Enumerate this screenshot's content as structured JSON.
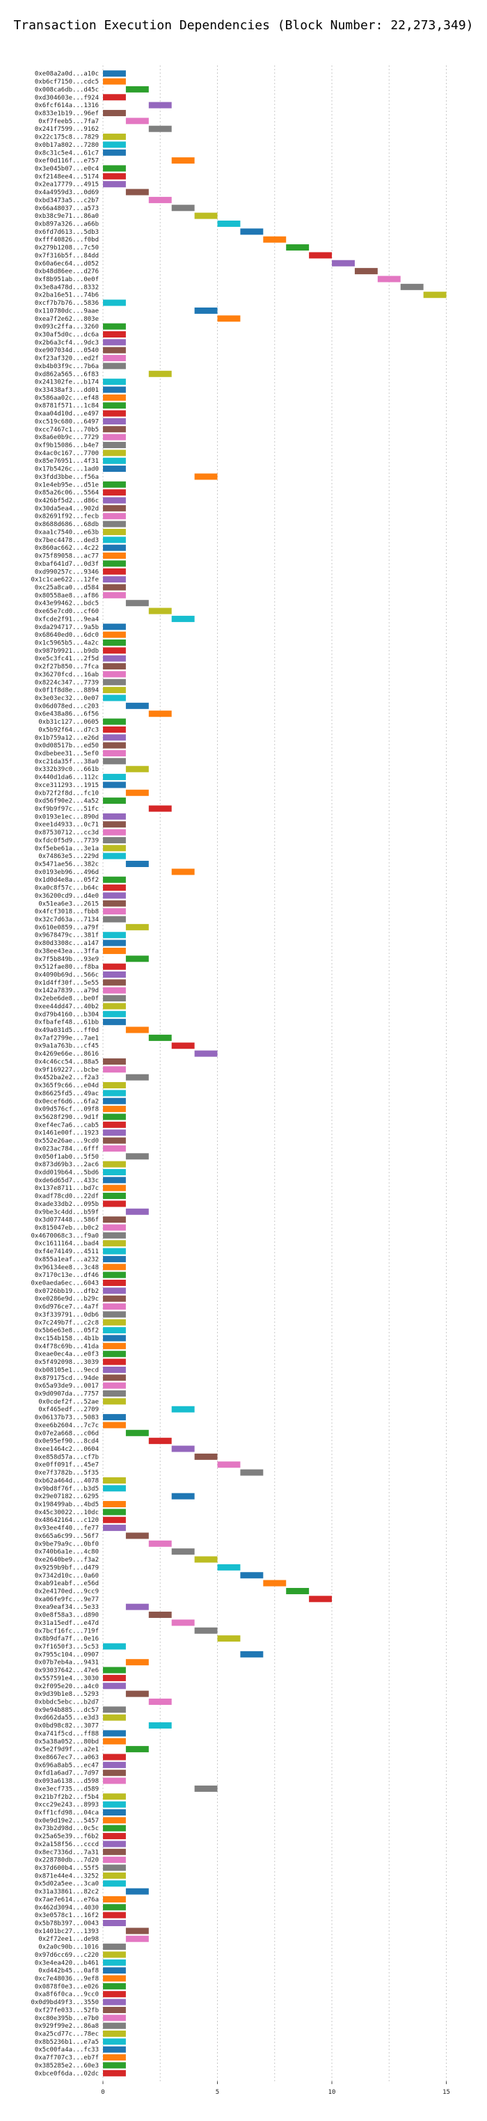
{
  "chart_data": {
    "type": "gantt",
    "title": "Transaction Execution Dependencies (Block Number: 22,273,349)",
    "xlabel": "",
    "ylabel": "",
    "xlim": [
      0,
      15.5
    ],
    "x_ticks": [
      0,
      5,
      10,
      15
    ],
    "grid": "vertical dotted",
    "palette": [
      "#1f77b4",
      "#ff7f0e",
      "#2ca02c",
      "#d62728",
      "#9467bd",
      "#8c564b",
      "#e377c2",
      "#7f7f7f",
      "#bcbd22",
      "#17becf"
    ],
    "transactions": [
      {
        "label": "0xe08a2a0d...a10c",
        "start": 0
      },
      {
        "label": "0xb6cf7150...cdc5",
        "start": 0
      },
      {
        "label": "0x008ca6db...d45c",
        "start": 1
      },
      {
        "label": "0xd304603e...f924",
        "start": 0
      },
      {
        "label": "0x6fcf614a...1316",
        "start": 2
      },
      {
        "label": "0x833e1b19...96ef",
        "start": 0
      },
      {
        "label": "0xf7feeb5...7fa7",
        "start": 1
      },
      {
        "label": "0x241f7599...9162",
        "start": 2
      },
      {
        "label": "0x22c175c8...7829",
        "start": 0
      },
      {
        "label": "0x0b17a802...7280",
        "start": 0
      },
      {
        "label": "0x8c31c5e4...61c7",
        "start": 0
      },
      {
        "label": "0xef0d116f...e757",
        "start": 3
      },
      {
        "label": "0x3e045b07...e0c4",
        "start": 0
      },
      {
        "label": "0xf2148ee4...5174",
        "start": 0
      },
      {
        "label": "0x2ea17779...4915",
        "start": 0
      },
      {
        "label": "0x4a4959d3...0d69",
        "start": 1
      },
      {
        "label": "0xbd3473a5...c2b7",
        "start": 2
      },
      {
        "label": "0x66a48037...a573",
        "start": 3
      },
      {
        "label": "0xb38c9e71...86a0",
        "start": 4
      },
      {
        "label": "0xb897a326...a66b",
        "start": 5
      },
      {
        "label": "0x6fd7d613...5db3",
        "start": 6
      },
      {
        "label": "0xfff40826...f0bd",
        "start": 7
      },
      {
        "label": "0x279b1208...7c50",
        "start": 8
      },
      {
        "label": "0x7f316b5f...84dd",
        "start": 9
      },
      {
        "label": "0x60a6ec64...d052",
        "start": 10
      },
      {
        "label": "0xb48d86ee...d276",
        "start": 11
      },
      {
        "label": "0xf8b951ab...0e0f",
        "start": 12
      },
      {
        "label": "0x3e8a478d...8332",
        "start": 13
      },
      {
        "label": "0x2ba16e51...74b6",
        "start": 14
      },
      {
        "label": "0xcf7b7b76...5836",
        "start": 0
      },
      {
        "label": "0x110780dc...9aae",
        "start": 4
      },
      {
        "label": "0xea7f2e62...803e",
        "start": 5
      },
      {
        "label": "0x093c2ffa...3260",
        "start": 0
      },
      {
        "label": "0x30af5d0c...dc6a",
        "start": 0
      },
      {
        "label": "0x2b6a3cf4...9dc3",
        "start": 0
      },
      {
        "label": "0xe907034d...0540",
        "start": 0
      },
      {
        "label": "0xf23af320...ed2f",
        "start": 0
      },
      {
        "label": "0xb4b03f9c...7b6a",
        "start": 0
      },
      {
        "label": "0xd862a565...6f83",
        "start": 2
      },
      {
        "label": "0x241302fe...b174",
        "start": 0
      },
      {
        "label": "0x33438af3...dd01",
        "start": 0
      },
      {
        "label": "0x586aa02c...ef48",
        "start": 0
      },
      {
        "label": "0x8781f571...1c84",
        "start": 0
      },
      {
        "label": "0xaa04d10d...e497",
        "start": 0
      },
      {
        "label": "0xc519c680...6497",
        "start": 0
      },
      {
        "label": "0xcc7467c1...70b5",
        "start": 0
      },
      {
        "label": "0x8a6e0b9c...7729",
        "start": 0
      },
      {
        "label": "0xf9b15086...b4e7",
        "start": 0
      },
      {
        "label": "0x4ac0c167...7700",
        "start": 0
      },
      {
        "label": "0x85e76951...4f31",
        "start": 0
      },
      {
        "label": "0x17b5426c...1ad0",
        "start": 0
      },
      {
        "label": "0x3fdd3bbe...f56a",
        "start": 4
      },
      {
        "label": "0x1e4eb95e...d51e",
        "start": 0
      },
      {
        "label": "0x85a26c06...5564",
        "start": 0
      },
      {
        "label": "0x426bf5d2...d86c",
        "start": 0
      },
      {
        "label": "0x30da5ea4...902d",
        "start": 0
      },
      {
        "label": "0x82691f92...fecb",
        "start": 0
      },
      {
        "label": "0x8688d686...68db",
        "start": 0
      },
      {
        "label": "0xaa1c7540...e63b",
        "start": 0
      },
      {
        "label": "0x7bec4478...ded3",
        "start": 0
      },
      {
        "label": "0x860ac662...4c22",
        "start": 0
      },
      {
        "label": "0x75f89058...ac77",
        "start": 0
      },
      {
        "label": "0xbaf641d7...0d3f",
        "start": 0
      },
      {
        "label": "0xd990257c...9346",
        "start": 0
      },
      {
        "label": "0x1c1cae622...12fe",
        "start": 0
      },
      {
        "label": "0xc25a8ca0...d584",
        "start": 0
      },
      {
        "label": "0x80558ae8...af86",
        "start": 0
      },
      {
        "label": "0x43e99462...bdc5",
        "start": 1
      },
      {
        "label": "0xe65e7cd0...cf60",
        "start": 2
      },
      {
        "label": "0xfcde2f91...9ea4",
        "start": 3
      },
      {
        "label": "0xda294717...9a5b",
        "start": 0
      },
      {
        "label": "0x68640ed0...6dc0",
        "start": 0
      },
      {
        "label": "0x1c5965b5...4a2c",
        "start": 0
      },
      {
        "label": "0x987b9921...b9db",
        "start": 0
      },
      {
        "label": "0xe5c3fc41...2f5d",
        "start": 0
      },
      {
        "label": "0x2f27b850...7fca",
        "start": 0
      },
      {
        "label": "0x36270fcd...16ab",
        "start": 0
      },
      {
        "label": "0x8224c347...7739",
        "start": 0
      },
      {
        "label": "0x0f1f8d8e...8894",
        "start": 0
      },
      {
        "label": "0x3e03ec32...0e07",
        "start": 0
      },
      {
        "label": "0x06d078ed...c203",
        "start": 1
      },
      {
        "label": "0x6e438a86...6f56",
        "start": 2
      },
      {
        "label": "0xb31c127...0605",
        "start": 0
      },
      {
        "label": "0x5b92f64...d7c3",
        "start": 0
      },
      {
        "label": "0x1b759a12...e26d",
        "start": 0
      },
      {
        "label": "0x0d08517b...ed50",
        "start": 0
      },
      {
        "label": "0xdbebee31...5ef0",
        "start": 0
      },
      {
        "label": "0xc21da35f...38a0",
        "start": 0
      },
      {
        "label": "0x332b39c0...661b",
        "start": 1
      },
      {
        "label": "0x440d1da6...112c",
        "start": 0
      },
      {
        "label": "0xce311293...1915",
        "start": 0
      },
      {
        "label": "0xb72f2f8d...fc10",
        "start": 1
      },
      {
        "label": "0xd56f90e2...4a52",
        "start": 0
      },
      {
        "label": "0xf9b9f97c...51fc",
        "start": 2
      },
      {
        "label": "0x0193e1ec...890d",
        "start": 0
      },
      {
        "label": "0xee1d4933...0c71",
        "start": 0
      },
      {
        "label": "0x87530712...cc3d",
        "start": 0
      },
      {
        "label": "0xfdc0f5d9...7739",
        "start": 0
      },
      {
        "label": "0xf5ebe61a...3e1a",
        "start": 0
      },
      {
        "label": "0x74863e5...229d",
        "start": 0
      },
      {
        "label": "0x5471ae56...382c",
        "start": 1
      },
      {
        "label": "0x0193eb96...496d",
        "start": 3
      },
      {
        "label": "0x1d0d4e8a...05f2",
        "start": 0
      },
      {
        "label": "0xa0c8f57c...b64c",
        "start": 0
      },
      {
        "label": "0x36200cd9...d4e0",
        "start": 0
      },
      {
        "label": "0x51ea6e3...2615",
        "start": 0
      },
      {
        "label": "0x4fcf3018...fbb8",
        "start": 0
      },
      {
        "label": "0x32c7d63a...7134",
        "start": 0
      },
      {
        "label": "0x610e0859...a79f",
        "start": 1
      },
      {
        "label": "0x9678479c...381f",
        "start": 0
      },
      {
        "label": "0x80d3308c...a147",
        "start": 0
      },
      {
        "label": "0x38ee43ea...3ffa",
        "start": 0
      },
      {
        "label": "0x7f5b849b...93e9",
        "start": 1
      },
      {
        "label": "0x512fae80...f8ba",
        "start": 0
      },
      {
        "label": "0x4090b69d...566c",
        "start": 0
      },
      {
        "label": "0x1d4ff30f...5e55",
        "start": 0
      },
      {
        "label": "0x142a7839...a79d",
        "start": 0
      },
      {
        "label": "0x2ebe6de8...be0f",
        "start": 0
      },
      {
        "label": "0xee44dd47...40b2",
        "start": 0
      },
      {
        "label": "0xd79b4160...b304",
        "start": 0
      },
      {
        "label": "0xfbafef48...61bb",
        "start": 0
      },
      {
        "label": "0x49a031d5...ff0d",
        "start": 1
      },
      {
        "label": "0x7af2799e...7ae1",
        "start": 2
      },
      {
        "label": "0x9a1a763b...cf45",
        "start": 3
      },
      {
        "label": "0x4269e66e...8616",
        "start": 4
      },
      {
        "label": "0x4c46cc54...88a5",
        "start": 0
      },
      {
        "label": "0x9f169227...bcbe",
        "start": 0
      },
      {
        "label": "0x452ba2e2...f2a3",
        "start": 1
      },
      {
        "label": "0x365f9c66...e04d",
        "start": 0
      },
      {
        "label": "0x86625fd5...49ac",
        "start": 0
      },
      {
        "label": "0x0ecef6d6...6fa2",
        "start": 0
      },
      {
        "label": "0x09d576cf...09f8",
        "start": 0
      },
      {
        "label": "0x5628f290...9d1f",
        "start": 0
      },
      {
        "label": "0xef4ec7a6...cab5",
        "start": 0
      },
      {
        "label": "0x1461e00f...1923",
        "start": 0
      },
      {
        "label": "0x552e26ae...9cd0",
        "start": 0
      },
      {
        "label": "0x023ac784...6fff",
        "start": 0
      },
      {
        "label": "0x050f1ab0...5f50",
        "start": 1
      },
      {
        "label": "0x873d69b3...2ac6",
        "start": 0
      },
      {
        "label": "0xdd019b64...5bd6",
        "start": 0
      },
      {
        "label": "0xde6d65d7...433c",
        "start": 0
      },
      {
        "label": "0x137e8711...bd7c",
        "start": 0
      },
      {
        "label": "0xadf78cd0...22df",
        "start": 0
      },
      {
        "label": "0xade33db2...095b",
        "start": 0
      },
      {
        "label": "0x9be3c4dd...b59f",
        "start": 1
      },
      {
        "label": "0x3d077448...586f",
        "start": 0
      },
      {
        "label": "0x815047eb...b0c2",
        "start": 0
      },
      {
        "label": "0x4670068c3...f9a0",
        "start": 0
      },
      {
        "label": "0xc1611164...bad4",
        "start": 0
      },
      {
        "label": "0xf4e74149...4511",
        "start": 0
      },
      {
        "label": "0x855a1eaf...a232",
        "start": 0
      },
      {
        "label": "0x96134ee8...3c48",
        "start": 0
      },
      {
        "label": "0x7170c13e...df46",
        "start": 0
      },
      {
        "label": "0xe0aeda6ec...6043",
        "start": 0
      },
      {
        "label": "0x0726bb19...dfb2",
        "start": 0
      },
      {
        "label": "0xe0286e9d...b29c",
        "start": 0
      },
      {
        "label": "0x6d976ce7...4a7f",
        "start": 0
      },
      {
        "label": "0x3f339791...0db6",
        "start": 0
      },
      {
        "label": "0x7c249b7f...c2c8",
        "start": 0
      },
      {
        "label": "0x5b6e63e8...05f2",
        "start": 0
      },
      {
        "label": "0xc154b158...4b1b",
        "start": 0
      },
      {
        "label": "0x4f78c69b...41da",
        "start": 0
      },
      {
        "label": "0xeae0ec4a...e0f3",
        "start": 0
      },
      {
        "label": "0x5f492098...3039",
        "start": 0
      },
      {
        "label": "0xb08105e1...9ecd",
        "start": 0
      },
      {
        "label": "0x879175cd...94de",
        "start": 0
      },
      {
        "label": "0x65a93de9...0017",
        "start": 0
      },
      {
        "label": "0x9d0907da...7757",
        "start": 0
      },
      {
        "label": "0x0cdef2f...52ae",
        "start": 0
      },
      {
        "label": "0xf465edf...2709",
        "start": 3
      },
      {
        "label": "0x06137b73...5083",
        "start": 0
      },
      {
        "label": "0xee6b2604...7c7c",
        "start": 0
      },
      {
        "label": "0x07e2a668...c06d",
        "start": 1
      },
      {
        "label": "0x0e95ef90...8cd4",
        "start": 2
      },
      {
        "label": "0xee1464c2...0604",
        "start": 3
      },
      {
        "label": "0xe858d57a...cf7b",
        "start": 4
      },
      {
        "label": "0xe0ff091f...45e7",
        "start": 5
      },
      {
        "label": "0xe7f3782b...5f35",
        "start": 6
      },
      {
        "label": "0xb62a464d...4078",
        "start": 0
      },
      {
        "label": "0x9bd8f76f...b3d5",
        "start": 0
      },
      {
        "label": "0x29e07182...6295",
        "start": 3
      },
      {
        "label": "0x198499ab...4bd5",
        "start": 0
      },
      {
        "label": "0x45c30022...10dc",
        "start": 0
      },
      {
        "label": "0x48642164...c120",
        "start": 0
      },
      {
        "label": "0x93ee4f40...fe77",
        "start": 0
      },
      {
        "label": "0x665a6c99...56f7",
        "start": 1
      },
      {
        "label": "0x9be79a9c...0bf0",
        "start": 2
      },
      {
        "label": "0x740b6a1e...4c80",
        "start": 3
      },
      {
        "label": "0xe2640be9...f3a2",
        "start": 4
      },
      {
        "label": "0x9259b9bf...d479",
        "start": 5
      },
      {
        "label": "0x7342d10c...0a60",
        "start": 6
      },
      {
        "label": "0xab91eabf...e56d",
        "start": 7
      },
      {
        "label": "0x2e4170ed...9cc9",
        "start": 8
      },
      {
        "label": "0xa06fe9fc...9e77",
        "start": 9
      },
      {
        "label": "0xea9eaf34...5e33",
        "start": 1
      },
      {
        "label": "0x0e8f58a3...d890",
        "start": 2
      },
      {
        "label": "0x31a15edf...e47d",
        "start": 3
      },
      {
        "label": "0x7bcf16fc...719f",
        "start": 4
      },
      {
        "label": "0x8b9dfa7f...0e16",
        "start": 5
      },
      {
        "label": "0x7f1650f3...5c53",
        "start": 0
      },
      {
        "label": "0x7955c104...0907",
        "start": 6
      },
      {
        "label": "0x07b7eb4a...9431",
        "start": 1
      },
      {
        "label": "0x93037642...47e6",
        "start": 0
      },
      {
        "label": "0x557591e4...3030",
        "start": 0
      },
      {
        "label": "0x2f095e20...a4c0",
        "start": 0
      },
      {
        "label": "0x9d39b1e8...5293",
        "start": 1
      },
      {
        "label": "0xbbdc5ebc...b2d7",
        "start": 2
      },
      {
        "label": "0x9e94b885...dc57",
        "start": 0
      },
      {
        "label": "0xd662da55...e3d3",
        "start": 0
      },
      {
        "label": "0x0bd98c82...3077",
        "start": 2
      },
      {
        "label": "0xa741f5cd...ff88",
        "start": 0
      },
      {
        "label": "0x5a38a052...80bd",
        "start": 0
      },
      {
        "label": "0x5e2f9d9f...a2e1",
        "start": 1
      },
      {
        "label": "0xe8667ec7...a063",
        "start": 0
      },
      {
        "label": "0x696a8ab5...ec47",
        "start": 0
      },
      {
        "label": "0xfd1a6ad7...7d97",
        "start": 0
      },
      {
        "label": "0x093a6138...d598",
        "start": 0
      },
      {
        "label": "0xe3ecf735...d589",
        "start": 4
      },
      {
        "label": "0x21b7f2b2...f5b4",
        "start": 0
      },
      {
        "label": "0xcc29e243...8993",
        "start": 0
      },
      {
        "label": "0xff1cfd98...04ca",
        "start": 0
      },
      {
        "label": "0x0e9d19e2...5457",
        "start": 0
      },
      {
        "label": "0x73b2d98d...0c5c",
        "start": 0
      },
      {
        "label": "0x25a65e39...f6b2",
        "start": 0
      },
      {
        "label": "0x2a158f56...cccd",
        "start": 0
      },
      {
        "label": "0x8ec7336d...7a31",
        "start": 0
      },
      {
        "label": "0x228780db...7d20",
        "start": 0
      },
      {
        "label": "0x37d600b4...55f5",
        "start": 0
      },
      {
        "label": "0x871e44e4...3252",
        "start": 0
      },
      {
        "label": "0x5d02a5ee...3ca0",
        "start": 0
      },
      {
        "label": "0x31a33861...82c2",
        "start": 1
      },
      {
        "label": "0x7ae7e614...e76a",
        "start": 0
      },
      {
        "label": "0x462d3094...4030",
        "start": 0
      },
      {
        "label": "0x3e0578c1...16f2",
        "start": 0
      },
      {
        "label": "0x5b78b397...0043",
        "start": 0
      },
      {
        "label": "0x1401bc27...1393",
        "start": 1
      },
      {
        "label": "0x2f72ee1...de98",
        "start": 1
      },
      {
        "label": "0x2a0c90b...1016",
        "start": 0
      },
      {
        "label": "0x97d6cc69...c220",
        "start": 0
      },
      {
        "label": "0x3e4ea420...b461",
        "start": 0
      },
      {
        "label": "0xd442b45...0af8",
        "start": 0
      },
      {
        "label": "0xc7e48036...9ef8",
        "start": 0
      },
      {
        "label": "0x0878f0e3...e026",
        "start": 0
      },
      {
        "label": "0xa8f6f0ca...9cc0",
        "start": 0
      },
      {
        "label": "0x0d9bd49f3...3550",
        "start": 0
      },
      {
        "label": "0xf27fe033...52fb",
        "start": 0
      },
      {
        "label": "0xc80e395b...e7b0",
        "start": 0
      },
      {
        "label": "0x929f99e2...86a8",
        "start": 0
      },
      {
        "label": "0xa25cd77c...78ec",
        "start": 0
      },
      {
        "label": "0x8b5236b1...e7a5",
        "start": 0
      },
      {
        "label": "0x5c00fa4a...fc33",
        "start": 0
      },
      {
        "label": "0xa7f707c3...eb7f",
        "start": 0
      },
      {
        "label": "0x385285e2...60e3",
        "start": 0
      },
      {
        "label": "0xbce0f6da...02dc",
        "start": 0
      }
    ]
  }
}
